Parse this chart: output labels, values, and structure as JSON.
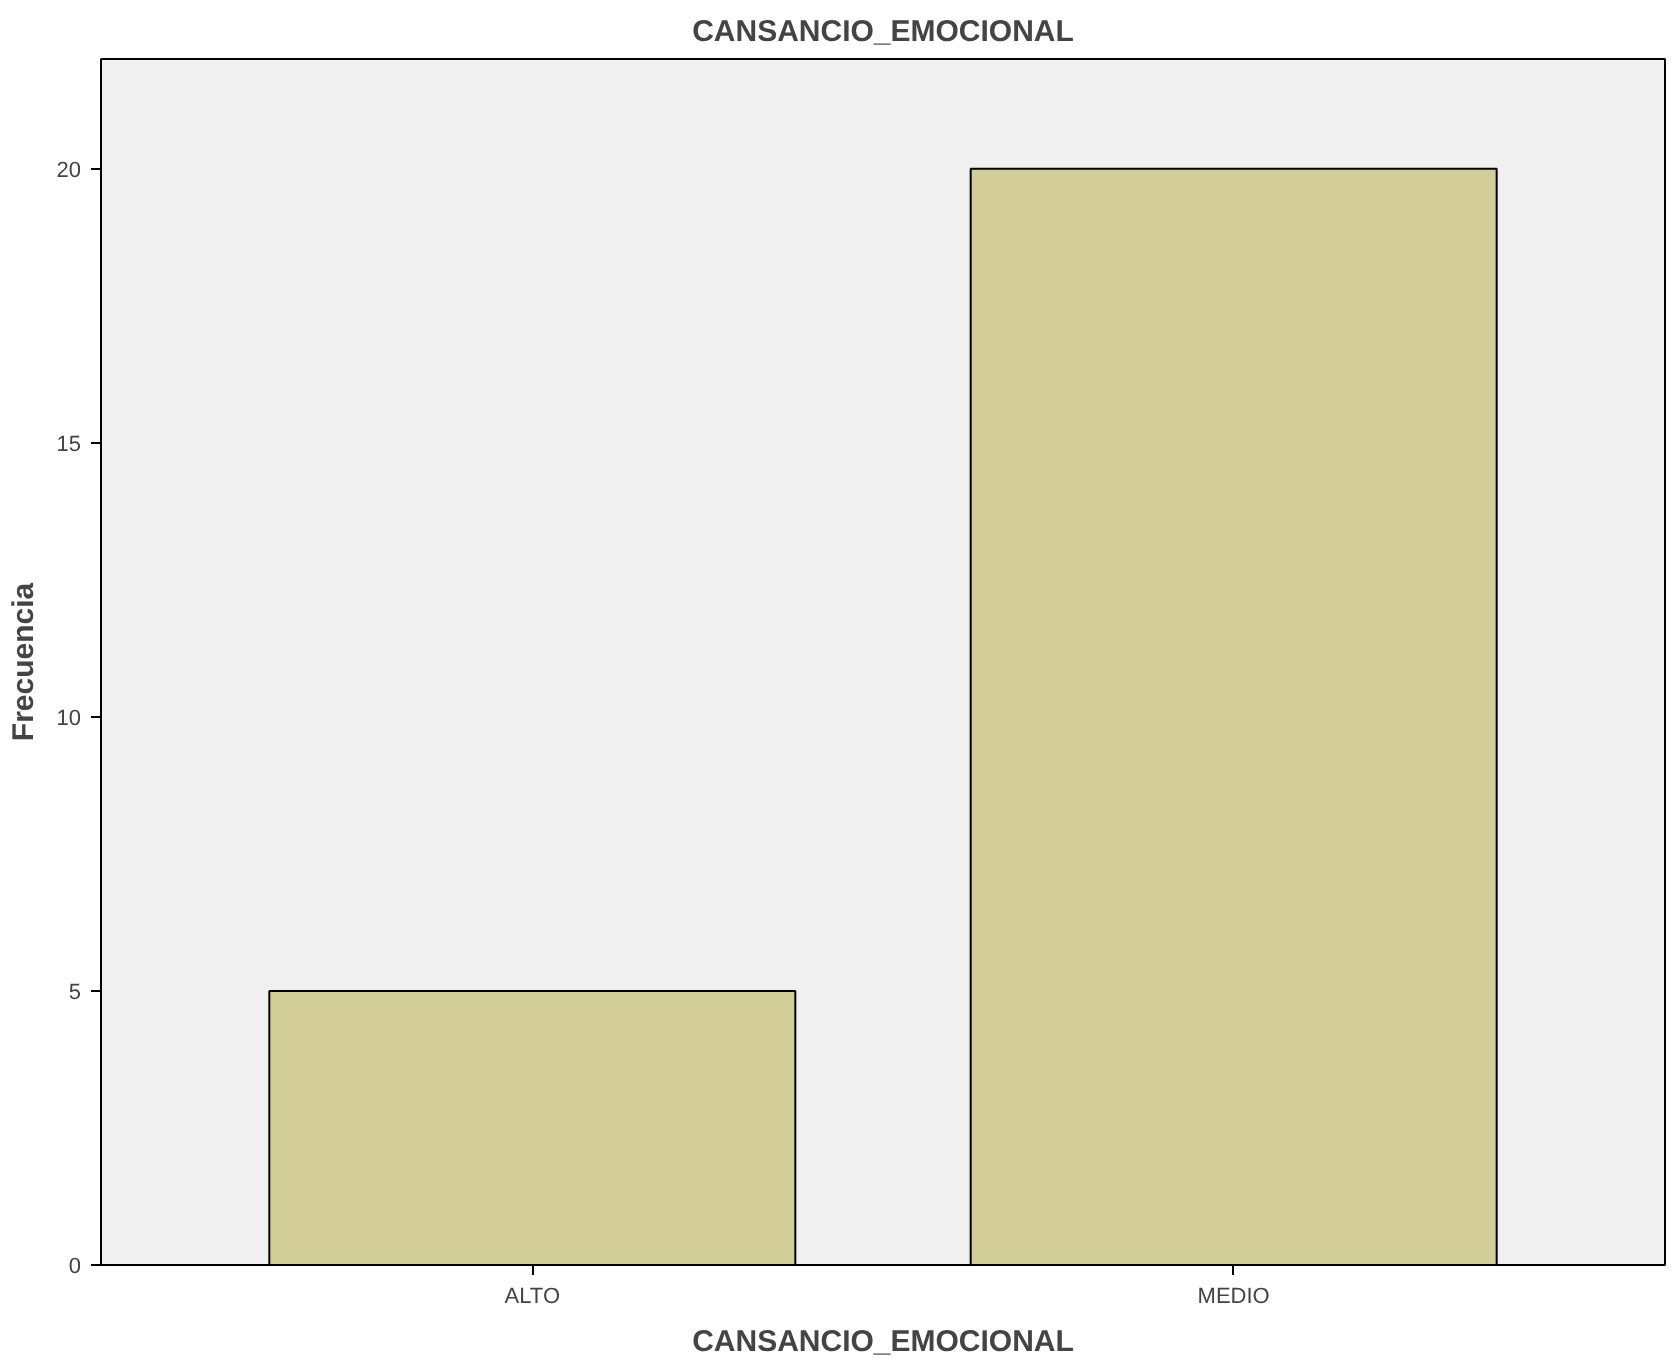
{
  "chart_data": {
    "type": "bar",
    "title": "CANSANCIO_EMOCIONAL",
    "xlabel": "CANSANCIO_EMOCIONAL",
    "ylabel": "Frecuencia",
    "categories": [
      "ALTO",
      "MEDIO"
    ],
    "values": [
      5,
      20
    ],
    "color": "#d3ce97",
    "ylim": [
      0,
      22
    ],
    "yticks": [
      0,
      5,
      10,
      15,
      20
    ],
    "grid": false
  }
}
